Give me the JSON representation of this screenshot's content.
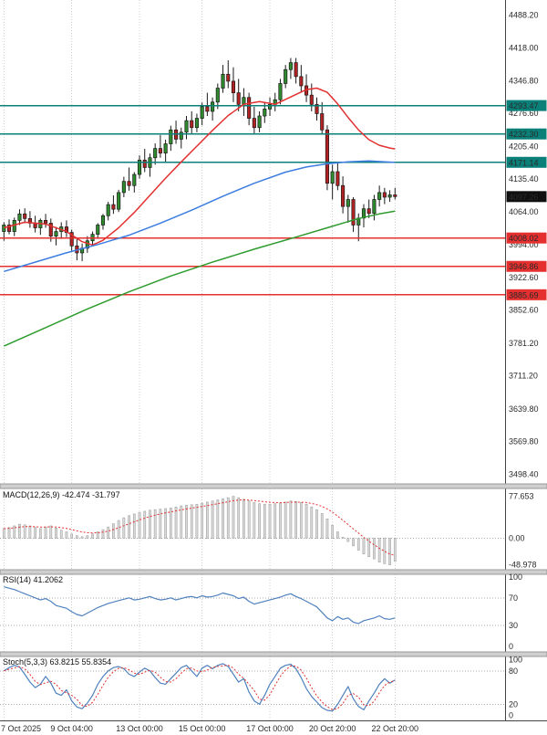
{
  "colors": {
    "bull": "#2e8b2e",
    "bear": "#b22222",
    "wick": "#1a1a1a",
    "resistance": "#0a8079",
    "support": "#e53030",
    "current": "#101010",
    "ma_fast": "#e33030",
    "ma_mid": "#3d7de0",
    "ma_slow": "#2e9b2e",
    "rsi_line": "#4f81bd",
    "stoch_k": "#4f81bd",
    "stoch_d": "#e33030",
    "macd_bar": "#d8d8d8",
    "macd_bar_border": "#999999",
    "macd_signal": "#e33030",
    "grid": "#d0d0d0",
    "axis_text": "#2a2a2a",
    "separator": "#cfcfcf",
    "separator_edge": "#9a9a9a",
    "axis_border": "#444444"
  },
  "chart_data": {
    "type": "candlestick",
    "price_axis": {
      "range": [
        3478,
        4521
      ],
      "ticks": [
        {
          "v": 4488.2,
          "label": "4488.20"
        },
        {
          "v": 4418.0,
          "label": "4418.00"
        },
        {
          "v": 4346.8,
          "label": "4346.80"
        },
        {
          "v": 4276.6,
          "label": "4276.60"
        },
        {
          "v": 4205.4,
          "label": "4205.40"
        },
        {
          "v": 4135.4,
          "label": "4135.40"
        },
        {
          "v": 4064.0,
          "label": "4064.00"
        },
        {
          "v": 3994.0,
          "label": "3994.00"
        },
        {
          "v": 3922.6,
          "label": "3922.60"
        },
        {
          "v": 3852.6,
          "label": "3852.60"
        },
        {
          "v": 3781.2,
          "label": "3781.20"
        },
        {
          "v": 3711.2,
          "label": "3711.20"
        },
        {
          "v": 3639.8,
          "label": "3639.80"
        },
        {
          "v": 3569.8,
          "label": "3569.80"
        },
        {
          "v": 3498.4,
          "label": "3498.40"
        }
      ]
    },
    "time_axis": {
      "ticks": [
        {
          "i": 0,
          "label": "7 Oct 2025"
        },
        {
          "i": 13,
          "label": "9 Oct 04:00"
        },
        {
          "i": 26,
          "label": "13 Oct 00:00"
        },
        {
          "i": 38,
          "label": "15 Oct 00:00"
        },
        {
          "i": 51,
          "label": "17 Oct 00:00"
        },
        {
          "i": 63,
          "label": "20 Oct 20:00"
        },
        {
          "i": 75,
          "label": "22 Oct 20:00"
        }
      ]
    },
    "levels": [
      {
        "price": 4293.47,
        "label": "4293.47",
        "role": "resistance"
      },
      {
        "price": 4232.3,
        "label": "4232.30",
        "role": "resistance"
      },
      {
        "price": 4171.14,
        "label": "4171.14",
        "role": "resistance"
      },
      {
        "price": 4097.26,
        "label": "4097.26",
        "role": "current"
      },
      {
        "price": 4008.02,
        "label": "4008.02",
        "role": "support"
      },
      {
        "price": 3946.86,
        "label": "3946.86",
        "role": "support"
      },
      {
        "price": 3885.69,
        "label": "3885.69",
        "role": "support"
      }
    ],
    "candles": [
      [
        4022,
        4042,
        4002,
        4036
      ],
      [
        4036,
        4048,
        4016,
        4022
      ],
      [
        4022,
        4052,
        4012,
        4046
      ],
      [
        4046,
        4070,
        4036,
        4060
      ],
      [
        4060,
        4072,
        4040,
        4050
      ],
      [
        4050,
        4066,
        4030,
        4040
      ],
      [
        4040,
        4056,
        4020,
        4030
      ],
      [
        4030,
        4050,
        4015,
        4046
      ],
      [
        4046,
        4060,
        4030,
        4040
      ],
      [
        4040,
        4050,
        4000,
        4012
      ],
      [
        4012,
        4032,
        3992,
        4022
      ],
      [
        4022,
        4042,
        4006,
        4032
      ],
      [
        4032,
        4046,
        4010,
        4020
      ],
      [
        4020,
        4026,
        3980,
        3991
      ],
      [
        3991,
        4006,
        3960,
        3976
      ],
      [
        3976,
        3996,
        3958,
        3986
      ],
      [
        3986,
        4012,
        3976,
        4002
      ],
      [
        4002,
        4022,
        3990,
        4016
      ],
      [
        4016,
        4040,
        4006,
        4036
      ],
      [
        4036,
        4060,
        4026,
        4056
      ],
      [
        4056,
        4086,
        4046,
        4080
      ],
      [
        4080,
        4100,
        4060,
        4070
      ],
      [
        4070,
        4112,
        4064,
        4106
      ],
      [
        4106,
        4140,
        4096,
        4130
      ],
      [
        4130,
        4160,
        4110,
        4121
      ],
      [
        4121,
        4150,
        4106,
        4145
      ],
      [
        4145,
        4186,
        4136,
        4176
      ],
      [
        4176,
        4200,
        4150,
        4160
      ],
      [
        4160,
        4190,
        4140,
        4181
      ],
      [
        4181,
        4212,
        4166,
        4201
      ],
      [
        4201,
        4230,
        4181,
        4191
      ],
      [
        4191,
        4220,
        4171,
        4211
      ],
      [
        4211,
        4250,
        4196,
        4241
      ],
      [
        4241,
        4261,
        4211,
        4221
      ],
      [
        4221,
        4246,
        4201,
        4236
      ],
      [
        4236,
        4271,
        4221,
        4261
      ],
      [
        4261,
        4281,
        4231,
        4246
      ],
      [
        4246,
        4276,
        4236,
        4266
      ],
      [
        4266,
        4300,
        4251,
        4291
      ],
      [
        4291,
        4321,
        4271,
        4281
      ],
      [
        4281,
        4311,
        4261,
        4301
      ],
      [
        4301,
        4341,
        4286,
        4331
      ],
      [
        4331,
        4381,
        4321,
        4361
      ],
      [
        4361,
        4391,
        4331,
        4346
      ],
      [
        4346,
        4376,
        4301,
        4321
      ],
      [
        4321,
        4351,
        4281,
        4296
      ],
      [
        4296,
        4331,
        4271,
        4311
      ],
      [
        4311,
        4321,
        4251,
        4266
      ],
      [
        4266,
        4291,
        4231,
        4246
      ],
      [
        4246,
        4281,
        4236,
        4271
      ],
      [
        4271,
        4301,
        4256,
        4286
      ],
      [
        4286,
        4311,
        4271,
        4296
      ],
      [
        4296,
        4321,
        4281,
        4306
      ],
      [
        4306,
        4351,
        4296,
        4341
      ],
      [
        4341,
        4381,
        4331,
        4371
      ],
      [
        4371,
        4396,
        4351,
        4386
      ],
      [
        4386,
        4396,
        4341,
        4356
      ],
      [
        4356,
        4381,
        4321,
        4336
      ],
      [
        4336,
        4361,
        4301,
        4316
      ],
      [
        4316,
        4341,
        4281,
        4296
      ],
      [
        4296,
        4311,
        4261,
        4276
      ],
      [
        4276,
        4301,
        4231,
        4241
      ],
      [
        4241,
        4251,
        4111,
        4126
      ],
      [
        4126,
        4166,
        4091,
        4151
      ],
      [
        4151,
        4171,
        4111,
        4121
      ],
      [
        4121,
        4141,
        4061,
        4076
      ],
      [
        4076,
        4101,
        4041,
        4091
      ],
      [
        4091,
        4096,
        4021,
        4036
      ],
      [
        4036,
        4061,
        4001,
        4051
      ],
      [
        4051,
        4081,
        4031,
        4071
      ],
      [
        4071,
        4091,
        4051,
        4061
      ],
      [
        4061,
        4101,
        4046,
        4091
      ],
      [
        4091,
        4121,
        4076,
        4106
      ],
      [
        4106,
        4116,
        4081,
        4096
      ],
      [
        4096,
        4111,
        4086,
        4101
      ],
      [
        4101,
        4116,
        4091,
        4097.26
      ]
    ],
    "moving_averages": [
      {
        "name": "ma-fast",
        "color_key": "ma_fast",
        "points": [
          [
            0,
            4030
          ],
          [
            4,
            4042
          ],
          [
            8,
            4038
          ],
          [
            12,
            4022
          ],
          [
            15,
            4000
          ],
          [
            17,
            3993
          ],
          [
            19,
            4003
          ],
          [
            22,
            4030
          ],
          [
            25,
            4063
          ],
          [
            28,
            4100
          ],
          [
            31,
            4137
          ],
          [
            34,
            4172
          ],
          [
            37,
            4206
          ],
          [
            40,
            4240
          ],
          [
            43,
            4272
          ],
          [
            46,
            4296
          ],
          [
            49,
            4302
          ],
          [
            52,
            4296
          ],
          [
            55,
            4312
          ],
          [
            58,
            4328
          ],
          [
            60,
            4331
          ],
          [
            62,
            4322
          ],
          [
            64,
            4297
          ],
          [
            66,
            4268
          ],
          [
            68,
            4241
          ],
          [
            70,
            4220
          ],
          [
            72,
            4208
          ],
          [
            74,
            4202
          ],
          [
            75,
            4200
          ]
        ]
      },
      {
        "name": "ma-mid",
        "color_key": "ma_mid",
        "points": [
          [
            0,
            3936
          ],
          [
            6,
            3956
          ],
          [
            12,
            3976
          ],
          [
            18,
            3994
          ],
          [
            24,
            4014
          ],
          [
            30,
            4040
          ],
          [
            36,
            4068
          ],
          [
            42,
            4098
          ],
          [
            48,
            4126
          ],
          [
            54,
            4150
          ],
          [
            58,
            4161
          ],
          [
            62,
            4168
          ],
          [
            66,
            4172
          ],
          [
            70,
            4174
          ],
          [
            75,
            4171
          ]
        ]
      },
      {
        "name": "ma-slow",
        "color_key": "ma_slow",
        "points": [
          [
            0,
            3775
          ],
          [
            8,
            3815
          ],
          [
            16,
            3855
          ],
          [
            24,
            3892
          ],
          [
            32,
            3926
          ],
          [
            40,
            3956
          ],
          [
            48,
            3984
          ],
          [
            56,
            4010
          ],
          [
            62,
            4030
          ],
          [
            68,
            4050
          ],
          [
            72,
            4060
          ],
          [
            75,
            4066
          ]
        ]
      }
    ],
    "indicators": [
      {
        "id": "macd",
        "label": "MACD(12,26,9) -42.474 -31.797",
        "vrange": [
          -58,
          92
        ],
        "axis": [
          {
            "v": 77.653,
            "label": "77.653"
          },
          {
            "v": 0,
            "label": "0.00"
          },
          {
            "v": -48.978,
            "label": "-48.978"
          }
        ],
        "zero_line": 0,
        "signal_period": 9,
        "values": [
          18,
          20,
          23,
          26,
          25,
          23,
          20,
          18,
          21,
          23,
          19,
          15,
          12,
          8,
          5,
          3,
          5,
          8,
          12,
          16,
          21,
          27,
          33,
          38,
          42,
          45,
          48,
          50,
          52,
          53,
          54,
          55,
          56,
          58,
          60,
          61,
          62,
          63,
          65,
          67,
          69,
          71,
          73,
          75,
          77.653,
          75,
          72,
          69,
          66,
          64,
          63,
          63,
          64,
          65,
          67,
          69,
          68,
          66,
          63,
          58,
          53,
          46,
          36,
          24,
          12,
          2,
          -6,
          -14,
          -22,
          -29,
          -34,
          -38,
          -44,
          -47,
          -48.978,
          -42.474
        ]
      },
      {
        "id": "rsi",
        "label": "RSI(14) 41.2062",
        "vrange": [
          -8,
          104
        ],
        "axis": [
          {
            "v": 100,
            "label": "100"
          },
          {
            "v": 70,
            "label": "70"
          },
          {
            "v": 30,
            "label": "30"
          },
          {
            "v": 0,
            "label": "0"
          }
        ],
        "levels": [
          70,
          30
        ],
        "values": [
          86,
          84,
          82,
          79,
          76,
          73,
          70,
          67,
          69,
          65,
          59,
          57,
          55,
          50,
          46,
          44,
          48,
          52,
          56,
          59,
          62,
          64,
          66,
          68,
          70,
          67,
          68,
          70,
          72,
          69,
          67,
          68,
          70,
          67,
          69,
          71,
          72,
          70,
          73,
          71,
          72,
          74,
          77,
          75,
          73,
          69,
          71,
          65,
          61,
          63,
          65,
          67,
          69,
          71,
          74,
          76,
          72,
          69,
          65,
          61,
          57,
          49,
          41,
          37,
          43,
          39,
          41,
          35,
          33,
          37,
          39,
          41,
          44,
          40,
          39,
          41.2
        ]
      },
      {
        "id": "stoch",
        "label": "Stoch(5,3,3) 63.8215 55.8354",
        "vrange": [
          -9,
          106
        ],
        "axis": [
          {
            "v": 100,
            "label": "100"
          },
          {
            "v": 80,
            "label": "80"
          },
          {
            "v": 20,
            "label": "20"
          },
          {
            "v": 0,
            "label": "0"
          }
        ],
        "levels": [
          80,
          20
        ],
        "signal_period": 3,
        "values": [
          80,
          86,
          90,
          87,
          74,
          60,
          50,
          56,
          70,
          58,
          40,
          36,
          46,
          26,
          15,
          12,
          22,
          36,
          56,
          70,
          80,
          86,
          88,
          84,
          74,
          70,
          78,
          85,
          80,
          68,
          58,
          56,
          66,
          76,
          86,
          90,
          80,
          70,
          85,
          90,
          84,
          90,
          93,
          88,
          74,
          60,
          66,
          42,
          26,
          20,
          36,
          56,
          70,
          85,
          90,
          92,
          84,
          68,
          48,
          34,
          24,
          14,
          9,
          8,
          20,
          36,
          52,
          30,
          16,
          10,
          26,
          40,
          56,
          66,
          58,
          63.82
        ]
      }
    ]
  }
}
